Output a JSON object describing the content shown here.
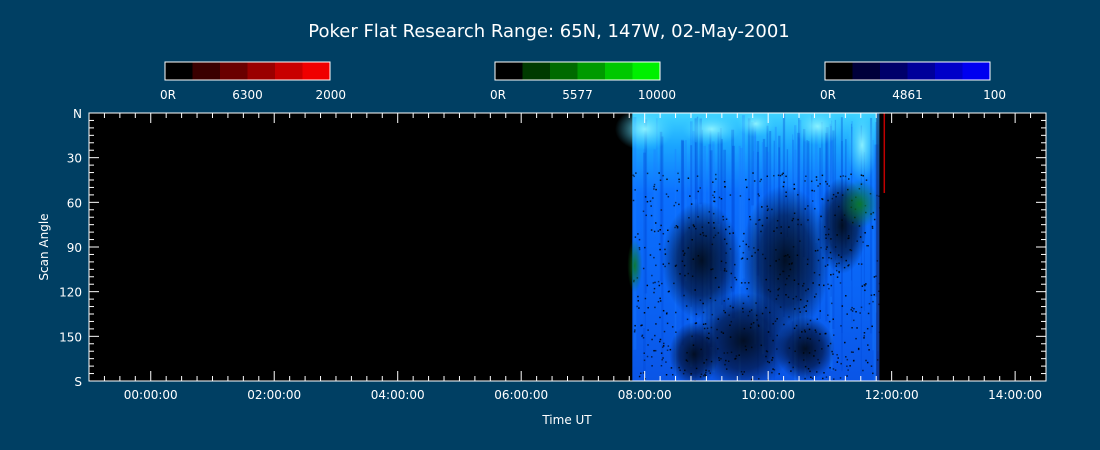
{
  "title": "Poker Flat Research Range: 65N, 147W, 02-May-2001",
  "colorbars": [
    {
      "label_min": "0R",
      "label_mid": "6300",
      "label_max": "2000",
      "colors": [
        "#000000",
        "#3a0000",
        "#6a0000",
        "#9a0000",
        "#c80000",
        "#f00000"
      ]
    },
    {
      "label_min": "0R",
      "label_mid": "5577",
      "label_max": "10000",
      "colors": [
        "#000000",
        "#003a00",
        "#006a00",
        "#009a00",
        "#00c800",
        "#00f000"
      ]
    },
    {
      "label_min": "0R",
      "label_mid": "4861",
      "label_max": "100",
      "colors": [
        "#000000",
        "#00003a",
        "#00006a",
        "#00009a",
        "#0000c8",
        "#0000f0"
      ]
    }
  ],
  "chart_data": {
    "type": "heatmap",
    "title": "Poker Flat Research Range: 65N, 147W, 02-May-2001",
    "xlabel": "Time UT",
    "ylabel": "Scan Angle",
    "x_ticks": [
      "00:00:00",
      "02:00:00",
      "04:00:00",
      "06:00:00",
      "08:00:00",
      "10:00:00",
      "12:00:00",
      "14:00:00"
    ],
    "x_tick_hours": [
      0,
      2,
      4,
      6,
      8,
      10,
      12,
      14
    ],
    "x_range_hours": [
      -1,
      14.5
    ],
    "y_ticks": [
      "N",
      "30",
      "60",
      "90",
      "120",
      "150",
      "S"
    ],
    "y_tick_values": [
      0,
      30,
      60,
      90,
      120,
      150,
      180
    ],
    "y_range": [
      0,
      180
    ],
    "data_start_hour": 7.8,
    "data_end_hour": 11.8,
    "channels": [
      "6300",
      "5577",
      "4861"
    ]
  }
}
